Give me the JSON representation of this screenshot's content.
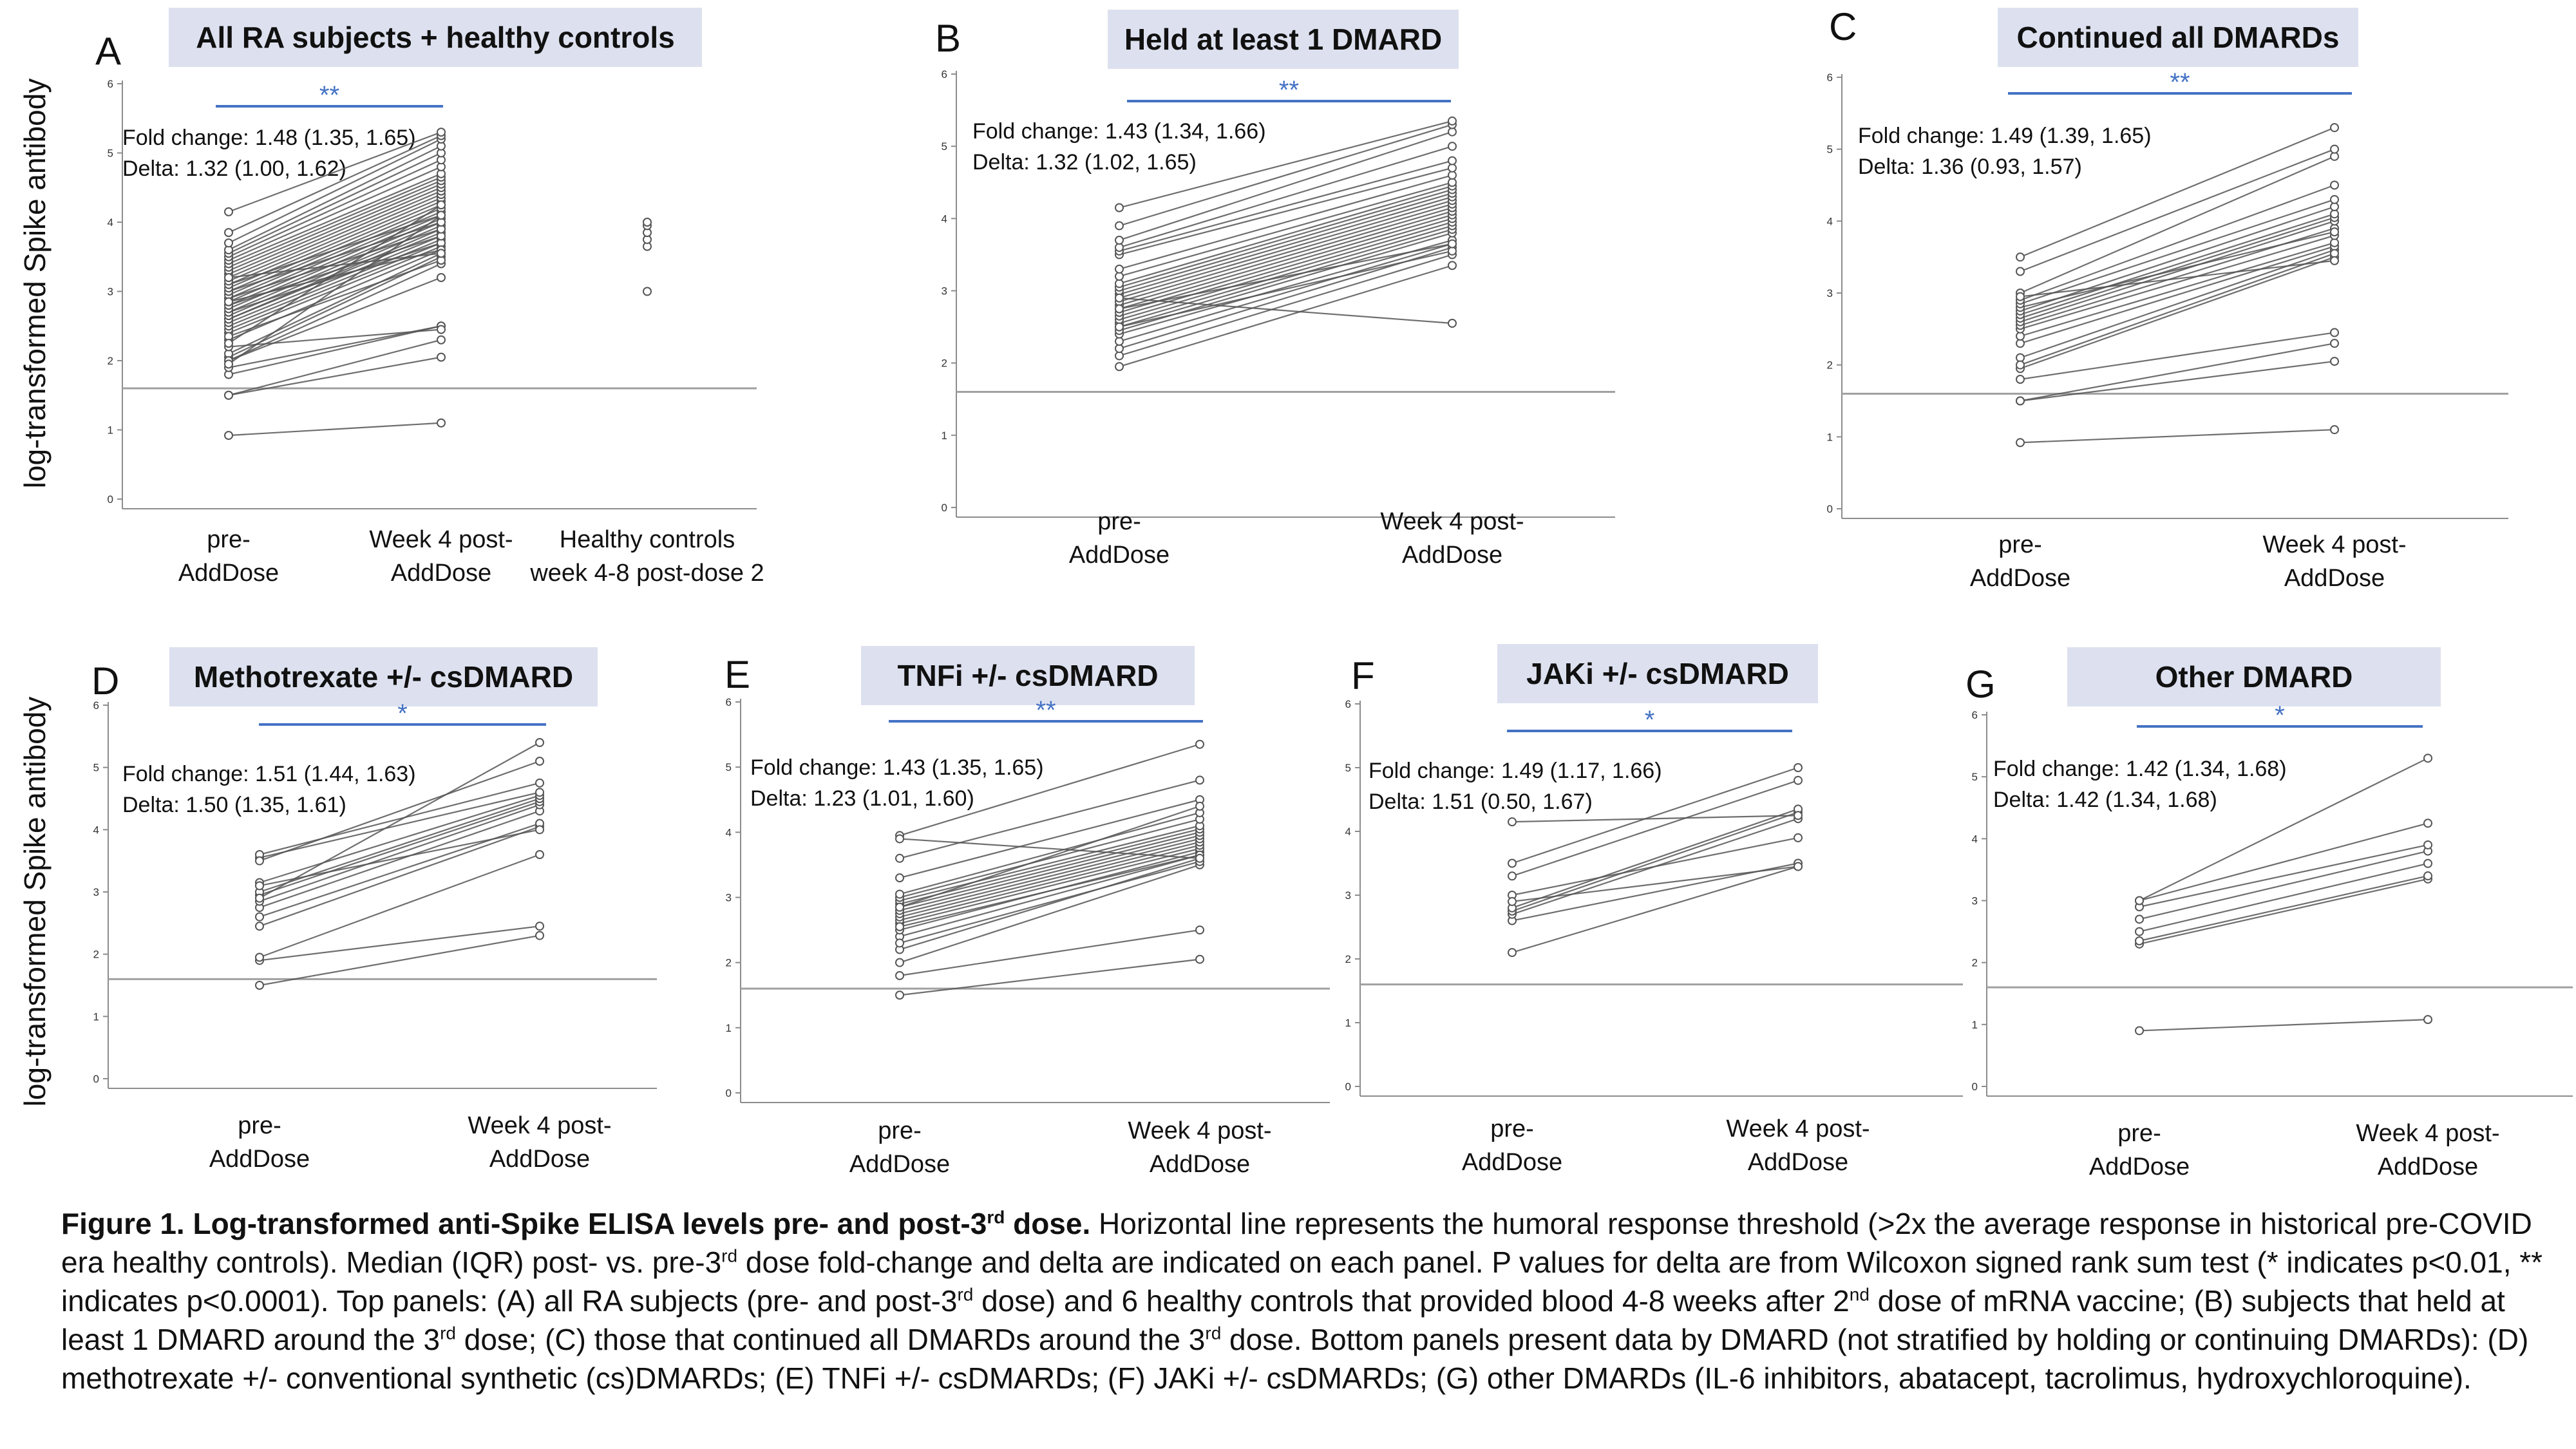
{
  "y_axis_label": "log-transformed Spike antibody",
  "chart_data": [
    {
      "panel": "A",
      "type": "line",
      "title": "All RA subjects + healthy controls",
      "significance": "**",
      "fold_change": "Fold change: 1.48 (1.35, 1.65)",
      "delta": "Delta: 1.32 (1.00, 1.62)",
      "categories": [
        "pre-\nAddDose",
        "Week 4 post-\nAddDose",
        "Healthy controls\nweek 4-8 post-dose 2"
      ],
      "yticks": [
        "0",
        "1",
        "2",
        "3",
        "4",
        "5",
        "6"
      ],
      "ylim": [
        0,
        6
      ],
      "threshold": 1.6,
      "pairs": [
        [
          0.92,
          1.1
        ],
        [
          1.5,
          2.05
        ],
        [
          1.5,
          2.3
        ],
        [
          1.8,
          2.5
        ],
        [
          1.9,
          2.5
        ],
        [
          2.0,
          3.4
        ],
        [
          2.05,
          3.5
        ],
        [
          2.1,
          3.55
        ],
        [
          2.2,
          2.45
        ],
        [
          2.3,
          3.6
        ],
        [
          2.4,
          3.65
        ],
        [
          2.45,
          3.7
        ],
        [
          2.5,
          3.75
        ],
        [
          2.55,
          3.8
        ],
        [
          2.6,
          3.85
        ],
        [
          2.6,
          3.9
        ],
        [
          2.65,
          3.95
        ],
        [
          2.7,
          4.0
        ],
        [
          2.7,
          3.7
        ],
        [
          2.75,
          4.05
        ],
        [
          2.8,
          4.1
        ],
        [
          2.8,
          3.8
        ],
        [
          2.85,
          4.15
        ],
        [
          2.9,
          4.2
        ],
        [
          2.9,
          3.9
        ],
        [
          2.95,
          4.25
        ],
        [
          3.0,
          4.3
        ],
        [
          3.0,
          4.0
        ],
        [
          3.05,
          4.35
        ],
        [
          3.1,
          4.4
        ],
        [
          3.1,
          4.1
        ],
        [
          3.15,
          4.45
        ],
        [
          3.2,
          4.5
        ],
        [
          3.25,
          4.55
        ],
        [
          3.3,
          4.6
        ],
        [
          3.35,
          4.65
        ],
        [
          3.4,
          4.7
        ],
        [
          3.45,
          4.8
        ],
        [
          3.5,
          4.9
        ],
        [
          3.55,
          5.0
        ],
        [
          3.6,
          5.1
        ],
        [
          3.7,
          5.2
        ],
        [
          3.85,
          5.25
        ],
        [
          4.15,
          5.3
        ],
        [
          2.0,
          3.2
        ],
        [
          2.35,
          3.45
        ],
        [
          2.85,
          3.6
        ],
        [
          3.2,
          3.55
        ],
        [
          2.25,
          4.25
        ],
        [
          1.95,
          4.1
        ]
      ],
      "controls": [
        3.0,
        3.65,
        3.75,
        3.85,
        3.95,
        4.0
      ]
    },
    {
      "panel": "B",
      "type": "line",
      "title": "Held at least 1 DMARD",
      "significance": "**",
      "fold_change": "Fold change: 1.43 (1.34, 1.66)",
      "delta": "Delta: 1.32 (1.02, 1.65)",
      "categories": [
        "pre-\nAddDose",
        "Week 4 post-\nAddDose"
      ],
      "yticks": [
        "0",
        "1",
        "2",
        "3",
        "4",
        "5",
        "6"
      ],
      "ylim": [
        0,
        6
      ],
      "threshold": 1.6,
      "pairs": [
        [
          1.95,
          3.35
        ],
        [
          2.1,
          3.5
        ],
        [
          2.2,
          3.6
        ],
        [
          2.3,
          3.65
        ],
        [
          2.4,
          3.7
        ],
        [
          2.45,
          3.8
        ],
        [
          2.5,
          3.85
        ],
        [
          2.55,
          3.9
        ],
        [
          2.6,
          3.95
        ],
        [
          2.65,
          4.0
        ],
        [
          2.7,
          4.05
        ],
        [
          2.75,
          4.1
        ],
        [
          2.8,
          4.15
        ],
        [
          2.85,
          4.2
        ],
        [
          2.9,
          4.25
        ],
        [
          2.95,
          4.3
        ],
        [
          3.0,
          4.35
        ],
        [
          3.05,
          4.4
        ],
        [
          3.1,
          4.45
        ],
        [
          3.2,
          4.5
        ],
        [
          3.3,
          4.6
        ],
        [
          3.5,
          4.7
        ],
        [
          3.55,
          4.8
        ],
        [
          3.6,
          5.0
        ],
        [
          3.7,
          5.2
        ],
        [
          3.9,
          5.3
        ],
        [
          4.15,
          5.35
        ],
        [
          2.9,
          2.55
        ],
        [
          2.5,
          3.55
        ],
        [
          2.75,
          3.65
        ]
      ]
    },
    {
      "panel": "C",
      "type": "line",
      "title": "Continued all DMARDs",
      "significance": "**",
      "fold_change": "Fold change: 1.49 (1.39, 1.65)",
      "delta": "Delta: 1.36 (0.93, 1.57)",
      "categories": [
        "pre-\nAddDose",
        "Week 4 post-\nAddDose"
      ],
      "yticks": [
        "0",
        "1",
        "2",
        "3",
        "4",
        "5",
        "6"
      ],
      "ylim": [
        0,
        6
      ],
      "threshold": 1.6,
      "pairs": [
        [
          0.92,
          1.1
        ],
        [
          1.5,
          2.05
        ],
        [
          1.5,
          2.3
        ],
        [
          1.8,
          2.45
        ],
        [
          1.95,
          3.5
        ],
        [
          2.1,
          3.6
        ],
        [
          2.3,
          3.65
        ],
        [
          2.4,
          3.7
        ],
        [
          2.5,
          3.8
        ],
        [
          2.55,
          3.9
        ],
        [
          2.6,
          4.0
        ],
        [
          2.65,
          4.05
        ],
        [
          2.7,
          4.1
        ],
        [
          2.75,
          4.2
        ],
        [
          2.8,
          3.85
        ],
        [
          2.85,
          4.3
        ],
        [
          2.9,
          4.5
        ],
        [
          3.0,
          4.9
        ],
        [
          3.3,
          5.0
        ],
        [
          3.5,
          5.3
        ],
        [
          2.0,
          3.55
        ],
        [
          2.95,
          3.45
        ]
      ]
    },
    {
      "panel": "D",
      "type": "line",
      "title": "Methotrexate +/- csDMARD",
      "significance": "*",
      "fold_change": "Fold change: 1.51 (1.44, 1.63)",
      "delta": "Delta: 1.50 (1.35, 1.61)",
      "categories": [
        "pre-\nAddDose",
        "Week 4 post-\nAddDose"
      ],
      "yticks": [
        "0",
        "1",
        "2",
        "3",
        "4",
        "5",
        "6"
      ],
      "ylim": [
        0,
        6
      ],
      "threshold": 1.6,
      "pairs": [
        [
          1.5,
          2.3
        ],
        [
          1.9,
          2.45
        ],
        [
          1.95,
          3.6
        ],
        [
          2.45,
          4.05
        ],
        [
          2.6,
          4.1
        ],
        [
          2.75,
          4.3
        ],
        [
          2.85,
          4.4
        ],
        [
          2.95,
          4.45
        ],
        [
          3.0,
          4.5
        ],
        [
          3.15,
          4.55
        ],
        [
          3.55,
          4.6
        ],
        [
          3.6,
          4.75
        ],
        [
          3.5,
          5.1
        ],
        [
          2.9,
          5.4
        ],
        [
          3.1,
          4.0
        ]
      ]
    },
    {
      "panel": "E",
      "type": "line",
      "title": "TNFi +/- csDMARD",
      "significance": "**",
      "fold_change": "Fold change: 1.43 (1.35, 1.65)",
      "delta": "Delta: 1.23 (1.01, 1.60)",
      "categories": [
        "pre-\nAddDose",
        "Week 4 post-\nAddDose"
      ],
      "yticks": [
        "0",
        "1",
        "2",
        "3",
        "4",
        "5",
        "6"
      ],
      "ylim": [
        0,
        6
      ],
      "threshold": 1.6,
      "pairs": [
        [
          1.5,
          2.05
        ],
        [
          1.8,
          2.5
        ],
        [
          2.0,
          3.5
        ],
        [
          2.2,
          3.6
        ],
        [
          2.4,
          3.65
        ],
        [
          2.5,
          3.7
        ],
        [
          2.6,
          3.75
        ],
        [
          2.65,
          3.8
        ],
        [
          2.7,
          3.85
        ],
        [
          2.75,
          3.9
        ],
        [
          2.8,
          3.95
        ],
        [
          2.85,
          4.0
        ],
        [
          2.9,
          4.05
        ],
        [
          2.95,
          4.1
        ],
        [
          3.0,
          4.2
        ],
        [
          3.05,
          4.3
        ],
        [
          3.3,
          4.5
        ],
        [
          3.6,
          4.8
        ],
        [
          3.95,
          5.35
        ],
        [
          2.3,
          3.55
        ],
        [
          2.55,
          3.65
        ],
        [
          2.85,
          4.4
        ],
        [
          3.9,
          3.6
        ]
      ]
    },
    {
      "panel": "F",
      "type": "line",
      "title": "JAKi +/- csDMARD",
      "significance": "*",
      "fold_change": "Fold change: 1.49 (1.17, 1.66)",
      "delta": "Delta: 1.51 (0.50, 1.67)",
      "categories": [
        "pre-\nAddDose",
        "Week 4 post-\nAddDose"
      ],
      "yticks": [
        "0",
        "1",
        "2",
        "3",
        "4",
        "5",
        "6"
      ],
      "ylim": [
        0,
        6
      ],
      "threshold": 1.6,
      "pairs": [
        [
          2.1,
          3.45
        ],
        [
          2.6,
          3.5
        ],
        [
          2.7,
          4.2
        ],
        [
          2.75,
          4.3
        ],
        [
          2.8,
          4.35
        ],
        [
          3.0,
          3.9
        ],
        [
          3.3,
          4.8
        ],
        [
          3.5,
          5.0
        ],
        [
          4.15,
          4.25
        ],
        [
          2.9,
          3.45
        ]
      ]
    },
    {
      "panel": "G",
      "type": "line",
      "title": "Other DMARD",
      "significance": "*",
      "fold_change": "Fold change: 1.42 (1.34, 1.68)",
      "delta": "Delta:  1.42 (1.34, 1.68)",
      "categories": [
        "pre-\nAddDose",
        "Week 4 post-\nAddDose"
      ],
      "yticks": [
        "0",
        "1",
        "2",
        "3",
        "4",
        "5",
        "6"
      ],
      "ylim": [
        0,
        6
      ],
      "threshold": 1.6,
      "pairs": [
        [
          0.9,
          1.08
        ],
        [
          2.3,
          3.35
        ],
        [
          2.35,
          3.4
        ],
        [
          2.5,
          3.6
        ],
        [
          2.7,
          3.8
        ],
        [
          2.9,
          3.9
        ],
        [
          3.0,
          4.25
        ],
        [
          3.0,
          5.3
        ]
      ]
    }
  ],
  "caption": {
    "bold": "Figure 1. Log-transformed anti-Spike ELISA levels pre- and post-3",
    "bold_sup": "rd",
    "bold_end": " dose.",
    "s1": " Horizontal line represents the humoral response threshold (>2x the average response in historical pre-COVID era healthy controls). Median (IQR) post- vs. pre-3",
    "sup1": "rd",
    "s2": " dose fold-change and delta are indicated on each panel. P values for delta are from Wilcoxon signed rank sum test (* indicates p<0.01, ** indicates p<0.0001). Top panels: (A) all RA subjects (pre- and post-3",
    "sup2": "rd",
    "s3": " dose) and 6 healthy controls that provided blood 4-8 weeks after 2",
    "sup3": "nd",
    "s4": " dose of mRNA vaccine; (B) subjects that held at least 1 DMARD around the 3",
    "sup4": "rd",
    "s5": " dose; (C) those that continued all DMARDs around the 3",
    "sup5": "rd",
    "s6": " dose.  Bottom panels present data by DMARD (not stratified by holding or continuing DMARDs): (D) methotrexate +/- conventional synthetic (cs)DMARDs; (E) TNFi +/- csDMARDs; (F) JAKi +/- csDMARDs; (G) other DMARDs (IL-6 inhibitors, abatacept, tacrolimus, hydroxychloroquine)."
  },
  "colors": {
    "title_box": "#dde1ef",
    "significance": "#4472c4",
    "series_line": "#555555",
    "threshold_line": "#a0a0a0",
    "axis": "#8c8c8c"
  }
}
